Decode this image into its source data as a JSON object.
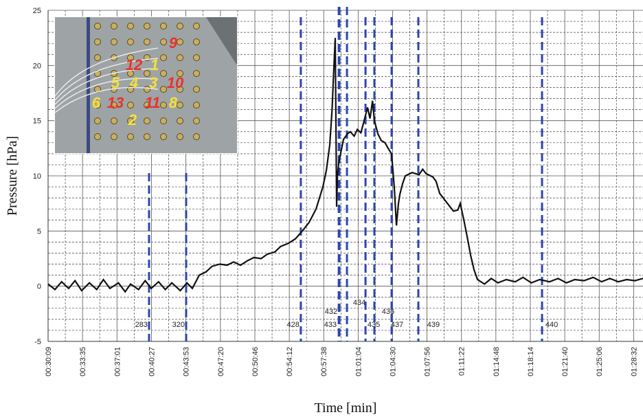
{
  "chart_data": {
    "type": "line",
    "xlabel": "Time [min]",
    "ylabel": "Pressure [hPa]",
    "color": "#111111",
    "x": [
      1809,
      1850,
      1890,
      1932,
      1970,
      2010,
      2056,
      2100,
      2140,
      2179,
      2230,
      2270,
      2302,
      2350,
      2390,
      2426,
      2470,
      2510,
      2549,
      2600,
      2640,
      2672,
      2713,
      2754,
      2790,
      2837,
      2880,
      2919,
      2960,
      3001,
      3040,
      3083,
      3120,
      3165,
      3200,
      3248,
      3289,
      3330,
      3371,
      3412,
      3453,
      3474,
      3494,
      3508,
      3515,
      3527,
      3535,
      3540,
      3548,
      3576,
      3600,
      3617,
      3640,
      3659,
      3680,
      3700,
      3720,
      3735,
      3750,
      3761,
      3782,
      3802,
      3825,
      3843,
      3864,
      3880,
      3893,
      3905,
      3913,
      3930,
      3946,
      3987,
      4028,
      4050,
      4070,
      4111,
      4130,
      4152,
      4193,
      4234,
      4260,
      4275,
      4296,
      4316,
      4337,
      4357,
      4378,
      4420,
      4460,
      4500,
      4550,
      4604,
      4650,
      4700,
      4750,
      4809,
      4860,
      4910,
      4960,
      5015,
      5070,
      5120,
      5170,
      5220,
      5270,
      5320,
      5368
    ],
    "values": [
      0.2,
      -0.3,
      0.4,
      -0.2,
      0.5,
      -0.4,
      0.3,
      -0.3,
      0.6,
      -0.2,
      0.3,
      -0.5,
      0.2,
      -0.3,
      0.5,
      -0.2,
      0.4,
      -0.3,
      0.3,
      -0.4,
      0.3,
      -0.2,
      1.0,
      1.3,
      1.8,
      2.0,
      1.9,
      2.2,
      1.9,
      2.3,
      2.6,
      2.5,
      2.9,
      3.1,
      3.6,
      3.9,
      4.3,
      5.0,
      5.8,
      7.0,
      9.0,
      10.5,
      12.8,
      16,
      18.5,
      22.5,
      7.2,
      10,
      11.2,
      13.3,
      13.8,
      14.0,
      13.6,
      14.2,
      13.9,
      15.0,
      16.2,
      15.2,
      16.8,
      15.0,
      13.8,
      13.2,
      13.0,
      12.5,
      12.0,
      9.0,
      5.5,
      7.5,
      8.3,
      9.3,
      10.0,
      10.3,
      10.1,
      10.6,
      10.2,
      9.9,
      9.5,
      8.4,
      7.6,
      6.8,
      6.9,
      7.5,
      6.0,
      4.5,
      2.8,
      1.5,
      0.6,
      0.2,
      0.7,
      0.3,
      0.6,
      0.4,
      0.8,
      0.3,
      0.6,
      0.4,
      0.7,
      0.3,
      0.6,
      0.5,
      0.8,
      0.4,
      0.7,
      0.4,
      0.6,
      0.5,
      0.7
    ],
    "xlim": [
      1809,
      5368
    ],
    "xticks": [
      {
        "value": 1809,
        "label": "00:30:09"
      },
      {
        "value": 2015,
        "label": "00:33:35"
      },
      {
        "value": 2221,
        "label": "00:37:01"
      },
      {
        "value": 2427,
        "label": "00:40:27"
      },
      {
        "value": 2633,
        "label": "00:43:53"
      },
      {
        "value": 2840,
        "label": "00:47:20"
      },
      {
        "value": 3046,
        "label": "00:50:46"
      },
      {
        "value": 3252,
        "label": "00:54:12"
      },
      {
        "value": 3458,
        "label": "00:57:38"
      },
      {
        "value": 3664,
        "label": "01:01:04"
      },
      {
        "value": 3870,
        "label": "01:04:30"
      },
      {
        "value": 4076,
        "label": "01:07:56"
      },
      {
        "value": 4282,
        "label": "01:11:22"
      },
      {
        "value": 4488,
        "label": "01:14:48"
      },
      {
        "value": 4694,
        "label": "01:18:14"
      },
      {
        "value": 4900,
        "label": "01:21:40"
      },
      {
        "value": 5106,
        "label": "01:25:06"
      },
      {
        "value": 5312,
        "label": "01:28:32"
      }
    ],
    "ylim": [
      -5,
      25
    ],
    "yticks": [
      -5,
      0,
      5,
      10,
      15,
      20,
      25
    ],
    "grid": true,
    "events": [
      {
        "x": 2413,
        "label": "283"
      },
      {
        "x": 2635,
        "label": "320"
      },
      {
        "x": 3321,
        "label": "428"
      },
      {
        "x": 3548,
        "label": "432"
      },
      {
        "x": 3552,
        "label": "433"
      },
      {
        "x": 3597,
        "label": "434"
      },
      {
        "x": 3708,
        "label": "435"
      },
      {
        "x": 3761,
        "label": "436"
      },
      {
        "x": 3864,
        "label": "437"
      },
      {
        "x": 4024,
        "label": "439"
      },
      {
        "x": 4764,
        "label": "440"
      }
    ],
    "event_color": "#2b45b0"
  },
  "inset_labels": [
    "9",
    "12",
    "1",
    "5",
    "4",
    "3",
    "10",
    "6",
    "13",
    "11",
    "8",
    "2"
  ]
}
